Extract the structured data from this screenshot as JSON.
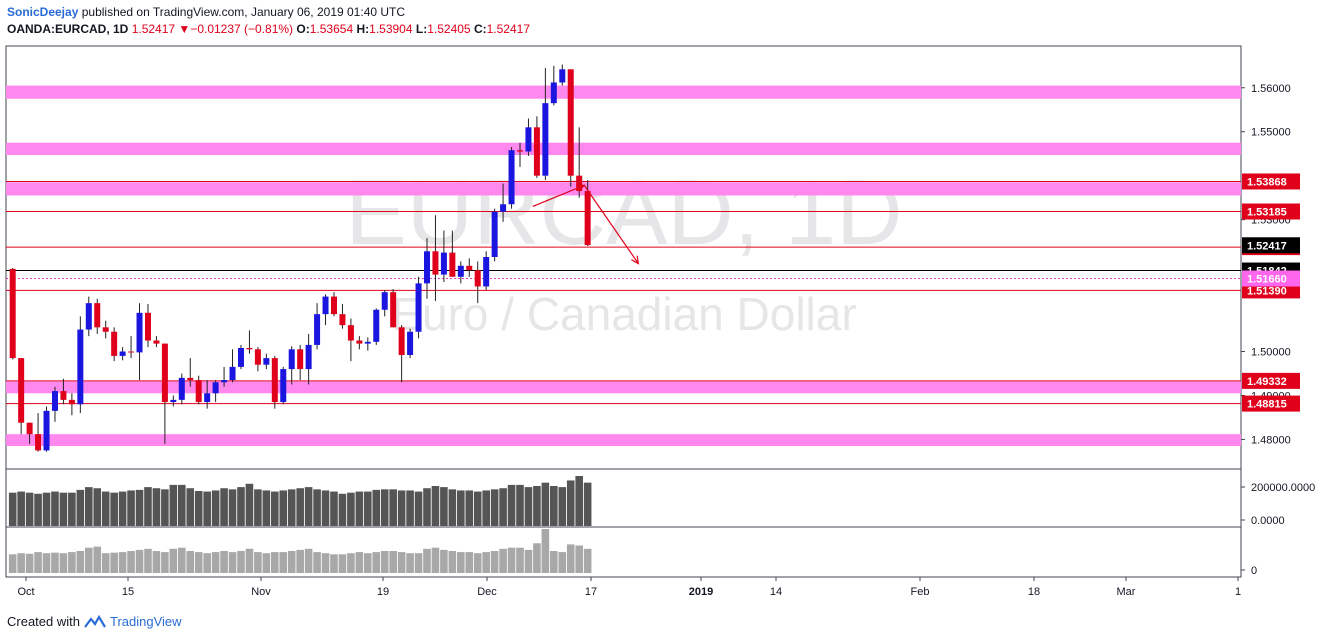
{
  "header": {
    "author": "SonicDeejay",
    "published_text": "published on TradingView.com, January 06, 2019 01:40 UTC",
    "symbol": "OANDA:EURCAD, 1D",
    "last_price": "1.52417",
    "change_arrow": "▼",
    "change": "−0.01237 (−0.81%)",
    "open_label": "O:",
    "open": "1.53654",
    "high_label": "H:",
    "high": "1.53904",
    "low_label": "L:",
    "low": "1.52405",
    "close_label": "C:",
    "close": "1.52417"
  },
  "footer": {
    "created_with": "Created with",
    "brand": "TradingView"
  },
  "watermark": {
    "symbol": "EURCAD, 1D",
    "description": "Euro / Canadian Dollar"
  },
  "colors": {
    "up": "#1a16e0",
    "down": "#e0001b",
    "zone": "#ff88ee",
    "level_line": "#e0001b",
    "volume": "#555555",
    "volume2": "#a8a8a8"
  },
  "chart_data": {
    "type": "candlestick",
    "y_axis_ticks": [
      "1.56000",
      "1.55000",
      "1.53000",
      "1.50000",
      "1.49000",
      "1.48000"
    ],
    "ylim": [
      1.4735,
      1.5695
    ],
    "x_axis_ticks": [
      "Oct",
      "15",
      "Nov",
      "19",
      "Dec",
      "17",
      "2019",
      "14",
      "Feb",
      "18",
      "Mar",
      "1"
    ],
    "candles": [
      {
        "o": 1.5188,
        "h": 1.519,
        "l": 1.4982,
        "c": 1.4985
      },
      {
        "o": 1.4985,
        "h": 1.4985,
        "l": 1.4812,
        "c": 1.4838
      },
      {
        "o": 1.4838,
        "h": 1.4838,
        "l": 1.479,
        "c": 1.4812
      },
      {
        "o": 1.4812,
        "h": 1.486,
        "l": 1.4772,
        "c": 1.4775
      },
      {
        "o": 1.4775,
        "h": 1.4875,
        "l": 1.4772,
        "c": 1.4865
      },
      {
        "o": 1.4865,
        "h": 1.492,
        "l": 1.484,
        "c": 1.491
      },
      {
        "o": 1.491,
        "h": 1.4938,
        "l": 1.488,
        "c": 1.489
      },
      {
        "o": 1.489,
        "h": 1.4905,
        "l": 1.4855,
        "c": 1.488
      },
      {
        "o": 1.488,
        "h": 1.508,
        "l": 1.486,
        "c": 1.505
      },
      {
        "o": 1.505,
        "h": 1.5125,
        "l": 1.5035,
        "c": 1.511
      },
      {
        "o": 1.511,
        "h": 1.512,
        "l": 1.504,
        "c": 1.5055
      },
      {
        "o": 1.5055,
        "h": 1.507,
        "l": 1.503,
        "c": 1.5045
      },
      {
        "o": 1.5045,
        "h": 1.5055,
        "l": 1.4978,
        "c": 1.499
      },
      {
        "o": 1.499,
        "h": 1.501,
        "l": 1.498,
        "c": 1.5
      },
      {
        "o": 1.5,
        "h": 1.5035,
        "l": 1.4985,
        "c": 1.4998
      },
      {
        "o": 1.4998,
        "h": 1.511,
        "l": 1.4935,
        "c": 1.5088
      },
      {
        "o": 1.5088,
        "h": 1.5108,
        "l": 1.501,
        "c": 1.5025
      },
      {
        "o": 1.5025,
        "h": 1.5035,
        "l": 1.501,
        "c": 1.5018
      },
      {
        "o": 1.5018,
        "h": 1.5018,
        "l": 1.479,
        "c": 1.4885
      },
      {
        "o": 1.4885,
        "h": 1.49,
        "l": 1.4875,
        "c": 1.489
      },
      {
        "o": 1.489,
        "h": 1.495,
        "l": 1.488,
        "c": 1.494
      },
      {
        "o": 1.494,
        "h": 1.4985,
        "l": 1.492,
        "c": 1.4935
      },
      {
        "o": 1.4935,
        "h": 1.4945,
        "l": 1.488,
        "c": 1.4885
      },
      {
        "o": 1.4885,
        "h": 1.4935,
        "l": 1.487,
        "c": 1.4905
      },
      {
        "o": 1.4905,
        "h": 1.4935,
        "l": 1.4885,
        "c": 1.493
      },
      {
        "o": 1.493,
        "h": 1.4965,
        "l": 1.492,
        "c": 1.4935
      },
      {
        "o": 1.4935,
        "h": 1.5005,
        "l": 1.493,
        "c": 1.4965
      },
      {
        "o": 1.4965,
        "h": 1.5015,
        "l": 1.496,
        "c": 1.5008
      },
      {
        "o": 1.5008,
        "h": 1.5048,
        "l": 1.4995,
        "c": 1.5005
      },
      {
        "o": 1.5005,
        "h": 1.501,
        "l": 1.4955,
        "c": 1.497
      },
      {
        "o": 1.497,
        "h": 1.4995,
        "l": 1.496,
        "c": 1.4985
      },
      {
        "o": 1.4985,
        "h": 1.499,
        "l": 1.487,
        "c": 1.4885
      },
      {
        "o": 1.4885,
        "h": 1.4965,
        "l": 1.488,
        "c": 1.496
      },
      {
        "o": 1.496,
        "h": 1.5012,
        "l": 1.4925,
        "c": 1.5005
      },
      {
        "o": 1.5005,
        "h": 1.5015,
        "l": 1.4935,
        "c": 1.496
      },
      {
        "o": 1.496,
        "h": 1.504,
        "l": 1.4925,
        "c": 1.5015
      },
      {
        "o": 1.5015,
        "h": 1.511,
        "l": 1.5005,
        "c": 1.5085
      },
      {
        "o": 1.5085,
        "h": 1.513,
        "l": 1.506,
        "c": 1.5125
      },
      {
        "o": 1.5125,
        "h": 1.5135,
        "l": 1.508,
        "c": 1.5085
      },
      {
        "o": 1.5085,
        "h": 1.5108,
        "l": 1.5052,
        "c": 1.506
      },
      {
        "o": 1.506,
        "h": 1.5075,
        "l": 1.4978,
        "c": 1.5025
      },
      {
        "o": 1.5025,
        "h": 1.5035,
        "l": 1.5005,
        "c": 1.5018
      },
      {
        "o": 1.5018,
        "h": 1.5032,
        "l": 1.5002,
        "c": 1.5022
      },
      {
        "o": 1.5022,
        "h": 1.5098,
        "l": 1.5015,
        "c": 1.5095
      },
      {
        "o": 1.5095,
        "h": 1.514,
        "l": 1.508,
        "c": 1.5135
      },
      {
        "o": 1.5135,
        "h": 1.5142,
        "l": 1.5055,
        "c": 1.5055
      },
      {
        "o": 1.5055,
        "h": 1.506,
        "l": 1.493,
        "c": 1.4992
      },
      {
        "o": 1.4992,
        "h": 1.5052,
        "l": 1.4985,
        "c": 1.5045
      },
      {
        "o": 1.5045,
        "h": 1.517,
        "l": 1.503,
        "c": 1.5155
      },
      {
        "o": 1.5155,
        "h": 1.5258,
        "l": 1.512,
        "c": 1.5228
      },
      {
        "o": 1.5228,
        "h": 1.531,
        "l": 1.5115,
        "c": 1.5175
      },
      {
        "o": 1.5175,
        "h": 1.5275,
        "l": 1.5158,
        "c": 1.5225
      },
      {
        "o": 1.5225,
        "h": 1.5275,
        "l": 1.517,
        "c": 1.517
      },
      {
        "o": 1.517,
        "h": 1.5205,
        "l": 1.5155,
        "c": 1.5195
      },
      {
        "o": 1.5195,
        "h": 1.5212,
        "l": 1.517,
        "c": 1.5185
      },
      {
        "o": 1.5185,
        "h": 1.5205,
        "l": 1.511,
        "c": 1.5148
      },
      {
        "o": 1.5148,
        "h": 1.5228,
        "l": 1.514,
        "c": 1.5215
      },
      {
        "o": 1.5215,
        "h": 1.5325,
        "l": 1.5205,
        "c": 1.5318
      },
      {
        "o": 1.5318,
        "h": 1.5382,
        "l": 1.5295,
        "c": 1.5335
      },
      {
        "o": 1.5335,
        "h": 1.5465,
        "l": 1.5325,
        "c": 1.5458
      },
      {
        "o": 1.5458,
        "h": 1.5475,
        "l": 1.542,
        "c": 1.5455
      },
      {
        "o": 1.5455,
        "h": 1.553,
        "l": 1.5445,
        "c": 1.551
      },
      {
        "o": 1.551,
        "h": 1.5535,
        "l": 1.5395,
        "c": 1.54
      },
      {
        "o": 1.54,
        "h": 1.5645,
        "l": 1.539,
        "c": 1.5565
      },
      {
        "o": 1.5565,
        "h": 1.565,
        "l": 1.556,
        "c": 1.5612
      },
      {
        "o": 1.5612,
        "h": 1.5653,
        "l": 1.5605,
        "c": 1.5642
      },
      {
        "o": 1.5642,
        "h": 1.5642,
        "l": 1.5375,
        "c": 1.54
      },
      {
        "o": 1.54,
        "h": 1.551,
        "l": 1.535,
        "c": 1.5365
      },
      {
        "o": 1.5365,
        "h": 1.539,
        "l": 1.524,
        "c": 1.5242
      }
    ],
    "volume": [
      60,
      62,
      60,
      58,
      60,
      62,
      60,
      60,
      65,
      70,
      68,
      62,
      60,
      62,
      64,
      65,
      70,
      68,
      66,
      74,
      74,
      68,
      63,
      62,
      64,
      68,
      66,
      70,
      76,
      66,
      64,
      62,
      64,
      66,
      68,
      70,
      66,
      64,
      62,
      58,
      60,
      62,
      62,
      65,
      66,
      66,
      64,
      64,
      62,
      68,
      72,
      70,
      66,
      64,
      64,
      62,
      64,
      66,
      68,
      74,
      74,
      70,
      72,
      78,
      72,
      70,
      82,
      90,
      78
    ],
    "volume2": [
      34,
      36,
      35,
      38,
      36,
      37,
      36,
      38,
      40,
      46,
      48,
      36,
      37,
      38,
      40,
      42,
      44,
      40,
      38,
      44,
      46,
      40,
      38,
      36,
      38,
      40,
      38,
      40,
      44,
      38,
      36,
      38,
      38,
      40,
      42,
      44,
      38,
      36,
      34,
      34,
      36,
      38,
      36,
      38,
      40,
      40,
      38,
      36,
      36,
      44,
      46,
      42,
      40,
      38,
      38,
      36,
      38,
      40,
      44,
      46,
      46,
      42,
      54,
      80,
      40,
      38,
      52,
      50,
      44
    ],
    "volume_axis_labels": [
      "200000.0000",
      "0.0000",
      "0"
    ],
    "zones": [
      {
        "from": 1.5575,
        "to": 1.5605
      },
      {
        "from": 1.5447,
        "to": 1.5475
      },
      {
        "from": 1.5355,
        "to": 1.5385
      },
      {
        "from": 1.4905,
        "to": 1.4932
      },
      {
        "from": 1.4785,
        "to": 1.4812
      }
    ],
    "levels": [
      "1.53868",
      "1.53185",
      "1.52375",
      "1.51390",
      "1.49332",
      "1.48815"
    ],
    "last_price_tag": "1.52417",
    "black_line_tag": "1.51842",
    "pink_dotted_tag": "1.51660",
    "arrow_path": [
      {
        "bar": 61.5,
        "price": 1.533
      },
      {
        "bar": 67.6,
        "price": 1.5378
      },
      {
        "bar": 74.0,
        "price": 1.52
      }
    ]
  }
}
